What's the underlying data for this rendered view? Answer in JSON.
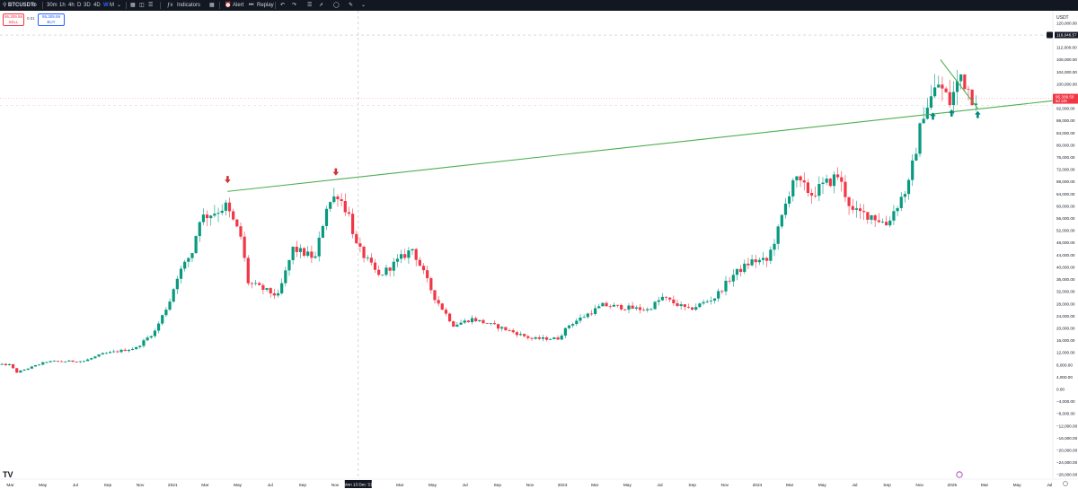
{
  "toolbar": {
    "symbol": "BTCUSDT",
    "intervals": [
      "30m",
      "1h",
      "4h",
      "D",
      "3D",
      "4D",
      "W",
      "M"
    ],
    "active_interval": "W",
    "indicators_label": "Indicators",
    "alert_label": "Alert",
    "replay_label": "Replay"
  },
  "quote": {
    "bid_price": "95,309.58",
    "bid_label": "SELL",
    "spread": "0.01",
    "ask_price": "95,309.59",
    "ask_label": "BUY"
  },
  "crosshair_label": "Mon 13 Dec '21",
  "logo_text": "TV",
  "colors": {
    "up": "#089981",
    "down": "#f23645",
    "trendline": "#4caf50",
    "arrow_down": "#d32f2f",
    "arrow_up": "#00897b"
  },
  "chart_data": {
    "type": "candlestick",
    "currency": "USDT",
    "x_tick_labels": [
      "Mar",
      "May",
      "Jul",
      "Sep",
      "Nov",
      "2021",
      "Mar",
      "May",
      "Jul",
      "Sep",
      "Nov",
      "Jan",
      "Mar",
      "May",
      "Jul",
      "Sep",
      "Nov",
      "2023",
      "Mar",
      "May",
      "Jul",
      "Sep",
      "Nov",
      "2024",
      "Mar",
      "May",
      "Jul",
      "Sep",
      "Nov",
      "2025",
      "Mar",
      "May",
      "Jul",
      "Sep"
    ],
    "y_ticks": [
      120000,
      116000,
      112000,
      108000,
      104000,
      100000,
      96000,
      92000,
      88000,
      84000,
      80000,
      76000,
      72000,
      68000,
      64000,
      60000,
      56000,
      52000,
      48000,
      44000,
      40000,
      36000,
      32000,
      28000,
      24000,
      20000,
      16000,
      12000,
      8000,
      4000,
      0,
      -4000,
      -8000,
      -12000,
      -16000,
      -20000,
      -24000,
      -28000
    ],
    "y_tick_labels": [
      "120,000.00",
      "116,000.00",
      "112,000.00",
      "108,000.00",
      "104,000.00",
      "100,000.00",
      "96,000.00",
      "92,000.00",
      "88,000.00",
      "84,000.00",
      "80,000.00",
      "76,000.00",
      "72,000.00",
      "68,000.00",
      "64,000.00",
      "60,000.00",
      "56,000.00",
      "52,000.00",
      "48,000.00",
      "44,000.00",
      "40,000.00",
      "36,000.00",
      "32,000.00",
      "28,000.00",
      "24,000.00",
      "20,000.00",
      "16,000.00",
      "12,000.00",
      "8,000.00",
      "4,000.00",
      "0.00",
      "−4,000.00",
      "−8,000.00",
      "−12,000.00",
      "−16,000.00",
      "−20,000.00",
      "−24,000.00",
      "−28,000.00"
    ],
    "ylim": [
      -29500,
      124000
    ],
    "horizontal_line": {
      "value": 116046.57,
      "label": "116,046.57"
    },
    "last_price": {
      "value": 95309.58,
      "label": "95,309.58",
      "countdown": "5d 13h"
    },
    "waypoints": [
      [
        "2020-03-02",
        8000
      ],
      [
        "2020-03-16",
        5500
      ],
      [
        "2020-05-11",
        9000
      ],
      [
        "2020-07-20",
        9200
      ],
      [
        "2020-08-24",
        11500
      ],
      [
        "2020-10-26",
        13500
      ],
      [
        "2020-11-30",
        19000
      ],
      [
        "2020-12-28",
        29000
      ],
      [
        "2021-01-11",
        37000
      ],
      [
        "2021-02-08",
        45000
      ],
      [
        "2021-02-22",
        56000
      ],
      [
        "2021-03-22",
        58000
      ],
      [
        "2021-04-12",
        60000
      ],
      [
        "2021-05-10",
        50000
      ],
      [
        "2021-05-24",
        35000
      ],
      [
        "2021-07-19",
        30500
      ],
      [
        "2021-08-16",
        46000
      ],
      [
        "2021-09-27",
        43000
      ],
      [
        "2021-10-18",
        60000
      ],
      [
        "2021-11-08",
        64000
      ],
      [
        "2021-11-29",
        57000
      ],
      [
        "2021-12-13",
        47000
      ],
      [
        "2022-01-24",
        37000
      ],
      [
        "2022-03-28",
        46000
      ],
      [
        "2022-05-09",
        30000
      ],
      [
        "2022-06-13",
        21000
      ],
      [
        "2022-07-18",
        23000
      ],
      [
        "2022-09-12",
        20000
      ],
      [
        "2022-11-07",
        16500
      ],
      [
        "2022-12-26",
        16600
      ],
      [
        "2023-01-16",
        21000
      ],
      [
        "2023-03-20",
        27500
      ],
      [
        "2023-06-12",
        26000
      ],
      [
        "2023-07-10",
        30000
      ],
      [
        "2023-08-28",
        26000
      ],
      [
        "2023-10-16",
        30000
      ],
      [
        "2023-11-20",
        37500
      ],
      [
        "2023-12-25",
        42000
      ],
      [
        "2024-01-22",
        42000
      ],
      [
        "2024-02-12",
        52000
      ],
      [
        "2024-03-11",
        69000
      ],
      [
        "2024-04-15",
        64000
      ],
      [
        "2024-06-03",
        70000
      ],
      [
        "2024-07-01",
        58000
      ],
      [
        "2024-08-05",
        57000
      ],
      [
        "2024-09-02",
        54000
      ],
      [
        "2024-10-14",
        67000
      ],
      [
        "2024-11-11",
        91000
      ],
      [
        "2024-12-09",
        100000
      ],
      [
        "2024-12-30",
        94000
      ],
      [
        "2025-01-20",
        103000
      ],
      [
        "2025-02-10",
        96000
      ]
    ],
    "trendlines": [
      {
        "points": [
          [
            "2021-04-12",
            64800
          ],
          [
            "2025-08-25",
            94500
          ]
        ]
      },
      {
        "points": [
          [
            "2024-12-09",
            108000
          ],
          [
            "2025-02-17",
            92000
          ]
        ]
      }
    ],
    "markers": [
      {
        "type": "arrow-down",
        "date": "2021-04-12",
        "value": 67500
      },
      {
        "type": "arrow-down",
        "date": "2021-11-01",
        "value": 70000
      },
      {
        "type": "arrow-up",
        "date": "2024-11-25",
        "value": 89500
      },
      {
        "type": "arrow-up",
        "date": "2024-12-30",
        "value": 90500
      },
      {
        "type": "arrow-up",
        "date": "2025-02-17",
        "value": 90000
      }
    ],
    "grid": "off",
    "crosshair": {
      "date": "2021-12-13",
      "value": 93000
    }
  }
}
